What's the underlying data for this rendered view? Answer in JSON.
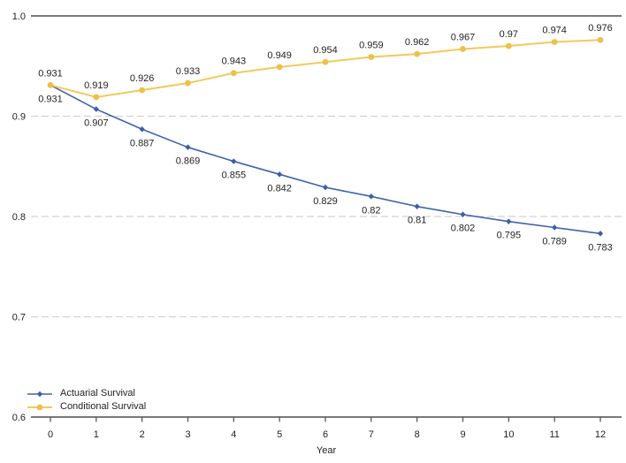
{
  "figure": {
    "background_color": "#ffffff",
    "text_color": "#1f1f1f",
    "axis_line_color": "#4d4d4d",
    "gridline_color": "#d2d2d2"
  },
  "chart_data": {
    "type": "line",
    "title": "",
    "xlabel": "Year",
    "ylabel": "",
    "x": [
      0,
      1,
      2,
      3,
      4,
      5,
      6,
      7,
      8,
      9,
      10,
      11,
      12
    ],
    "xtick_labels": [
      "0",
      "1",
      "2",
      "3",
      "4",
      "5",
      "6",
      "7",
      "8",
      "9",
      "10",
      "11",
      "12"
    ],
    "ytick_labels": [
      "1.0",
      "0.9",
      "0.8",
      "0.7",
      "0.6"
    ],
    "ytick_values": [
      1.0,
      0.9,
      0.8,
      0.7,
      0.6
    ],
    "ylim": [
      0.6,
      1.0
    ],
    "grid": {
      "dashed_horizontal_at": [
        0.9,
        0.8,
        0.7
      ],
      "solid_horizontal_at": [
        1.0,
        0.6
      ]
    },
    "legend_position": "bottom-left",
    "series": [
      {
        "name": "Actuarial Survival",
        "color": "#3e63ac",
        "marker": "diamond",
        "marker_color": "#3a5fa8",
        "label_position": "below",
        "values": [
          0.931,
          0.907,
          0.887,
          0.869,
          0.855,
          0.842,
          0.829,
          0.82,
          0.81,
          0.802,
          0.795,
          0.789,
          0.783
        ],
        "labels": [
          "0.931",
          "0.907",
          "0.887",
          "0.869",
          "0.855",
          "0.842",
          "0.829",
          "0.82",
          "0.81",
          "0.802",
          "0.795",
          "0.789",
          "0.783"
        ]
      },
      {
        "name": "Conditional Survival",
        "color": "#f2c95a",
        "marker": "circle",
        "marker_color": "#edc04b",
        "label_position": "above",
        "values": [
          0.931,
          0.919,
          0.926,
          0.933,
          0.943,
          0.949,
          0.954,
          0.959,
          0.962,
          0.967,
          0.97,
          0.974,
          0.976
        ],
        "labels": [
          "0.931",
          "0.919",
          "0.926",
          "0.933",
          "0.943",
          "0.949",
          "0.954",
          "0.959",
          "0.962",
          "0.967",
          "0.97",
          "0.974",
          "0.976"
        ]
      }
    ]
  }
}
